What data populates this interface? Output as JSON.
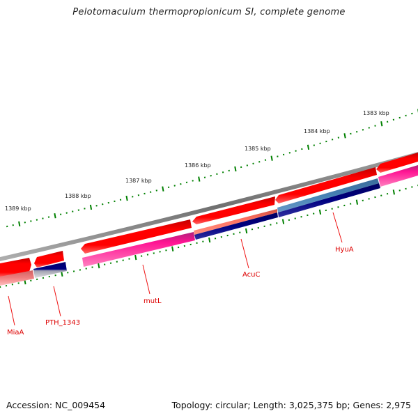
{
  "title": "Pelotomaculum thermopropionicum SI, complete genome",
  "footer": {
    "accession": "Accession: NC_009454",
    "summary": "Topology: circular; Length: 3,025,375 bp; Genes: 2,975"
  },
  "colors": {
    "backbone": "#808080",
    "ticks": "#008000",
    "forward_gene": "#ff0000",
    "label": "#dd0000",
    "pink": "#ff1493",
    "salmon": "#ff7f6a",
    "steelblue": "#4682b4",
    "navy": "#000080",
    "lightred": "#f08080",
    "gray_gradient": "#c0c0c0"
  },
  "scale": {
    "labels": [
      "1383 kbp",
      "1384 kbp",
      "1385 kbp",
      "1386 kbp",
      "1387 kbp",
      "1388 kbp",
      "1389 kbp"
    ]
  },
  "genes": [
    {
      "name": "MiaA"
    },
    {
      "name": "PTH_1343"
    },
    {
      "name": "mutL"
    },
    {
      "name": "AcuC"
    },
    {
      "name": "HyuA"
    }
  ]
}
